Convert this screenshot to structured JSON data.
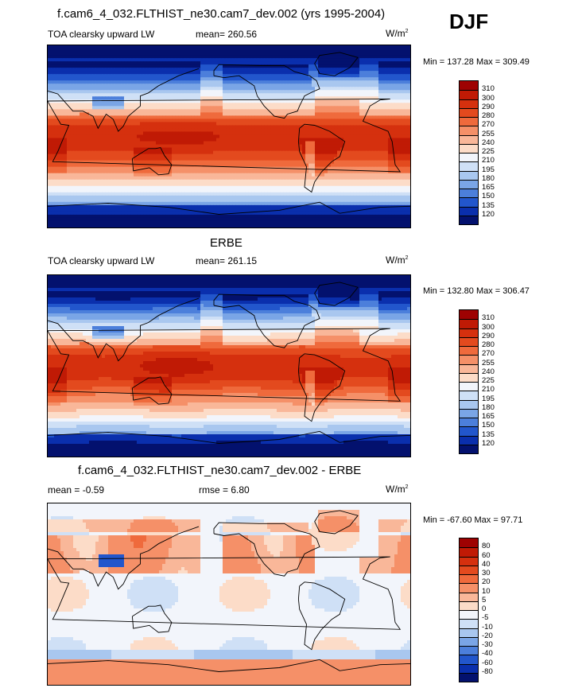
{
  "season": "DJF",
  "panels": [
    {
      "title": "f.cam6_4_032.FLTHIST_ne30.cam7_dev.002 (yrs 1995-2004)",
      "left": "TOA clearsky upward LW",
      "stat": "mean= 260.56",
      "units": "W/m",
      "units_sup": "2",
      "minmax": "Min = 137.28 Max = 309.49",
      "field": "model",
      "levels": [
        "310",
        "300",
        "290",
        "280",
        "270",
        "255",
        "240",
        "225",
        "210",
        "195",
        "180",
        "165",
        "150",
        "135",
        "120"
      ],
      "colors": [
        "#9e0202",
        "#c01a05",
        "#d5300e",
        "#e34a1e",
        "#ef6a3c",
        "#f59068",
        "#f9b799",
        "#fcdcc8",
        "#f2f5fb",
        "#cfe0f6",
        "#a9c7ef",
        "#7aa5e6",
        "#4c7fdb",
        "#2256cc",
        "#0a2fad",
        "#03116e"
      ]
    },
    {
      "title": "ERBE",
      "left": "TOA clearsky upward LW",
      "stat": "mean= 261.15",
      "units": "W/m",
      "units_sup": "2",
      "minmax": "Min = 132.80 Max = 306.47",
      "field": "obs",
      "levels": [
        "310",
        "300",
        "290",
        "280",
        "270",
        "255",
        "240",
        "225",
        "210",
        "195",
        "180",
        "165",
        "150",
        "135",
        "120"
      ],
      "colors": [
        "#9e0202",
        "#c01a05",
        "#d5300e",
        "#e34a1e",
        "#ef6a3c",
        "#f59068",
        "#f9b799",
        "#fcdcc8",
        "#f2f5fb",
        "#cfe0f6",
        "#a9c7ef",
        "#7aa5e6",
        "#4c7fdb",
        "#2256cc",
        "#0a2fad",
        "#03116e"
      ]
    },
    {
      "title": "f.cam6_4_032.FLTHIST_ne30.cam7_dev.002 - ERBE",
      "left": "mean =  -0.59",
      "stat": "rmse =   6.80",
      "units": "W/m",
      "units_sup": "2",
      "minmax": "Min = -67.60 Max =  97.71",
      "field": "diff",
      "levels": [
        "80",
        "60",
        "40",
        "30",
        "20",
        "10",
        "5",
        "0",
        "-5",
        "-10",
        "-20",
        "-30",
        "-40",
        "-60",
        "-80"
      ],
      "colors": [
        "#9e0202",
        "#c01a05",
        "#d5300e",
        "#e34a1e",
        "#ef6a3c",
        "#f59068",
        "#f9b799",
        "#fcdcc8",
        "#f2f5fb",
        "#cfe0f6",
        "#a9c7ef",
        "#7aa5e6",
        "#4c7fdb",
        "#2256cc",
        "#0a2fad",
        "#03116e"
      ]
    }
  ]
}
